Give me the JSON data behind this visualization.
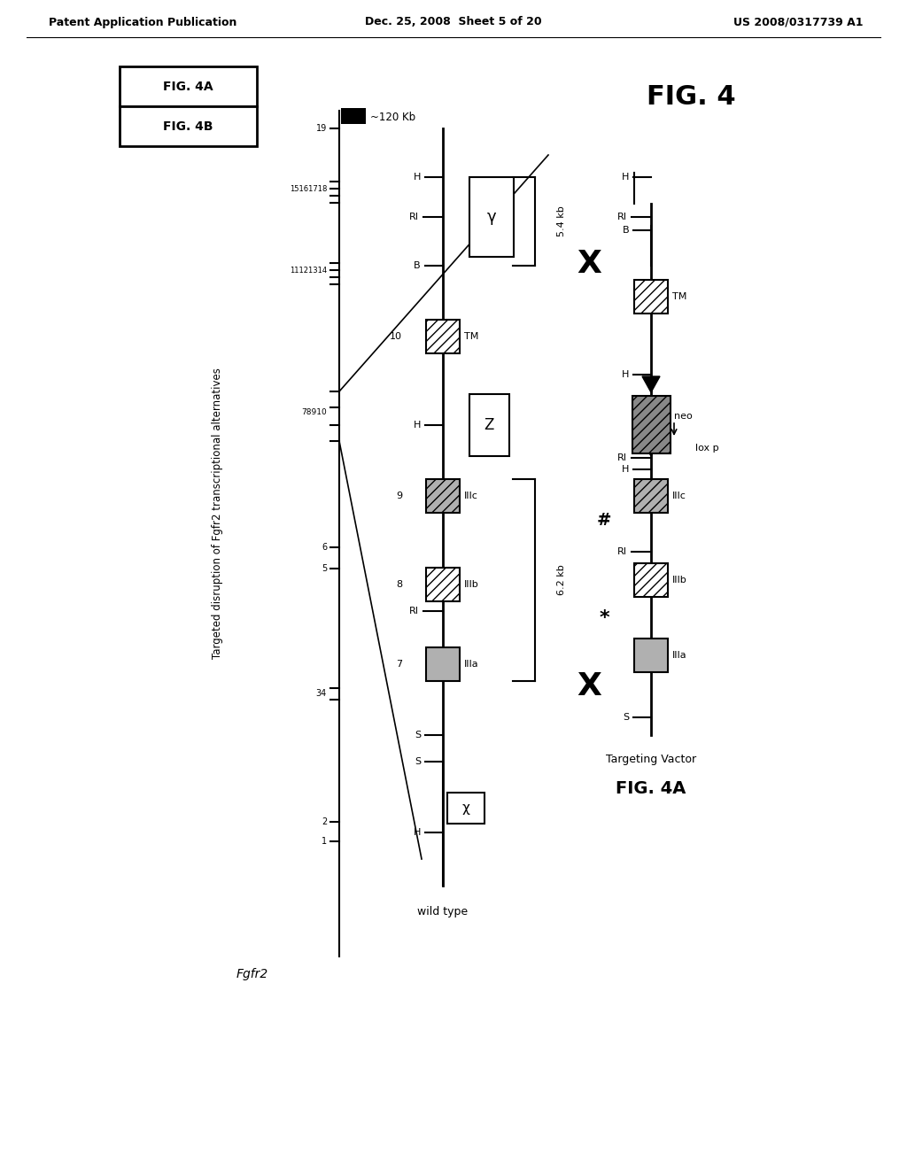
{
  "header_left": "Patent Application Publication",
  "header_center": "Dec. 25, 2008  Sheet 5 of 20",
  "header_right": "US 2008/0317739 A1",
  "background_color": "#ffffff"
}
